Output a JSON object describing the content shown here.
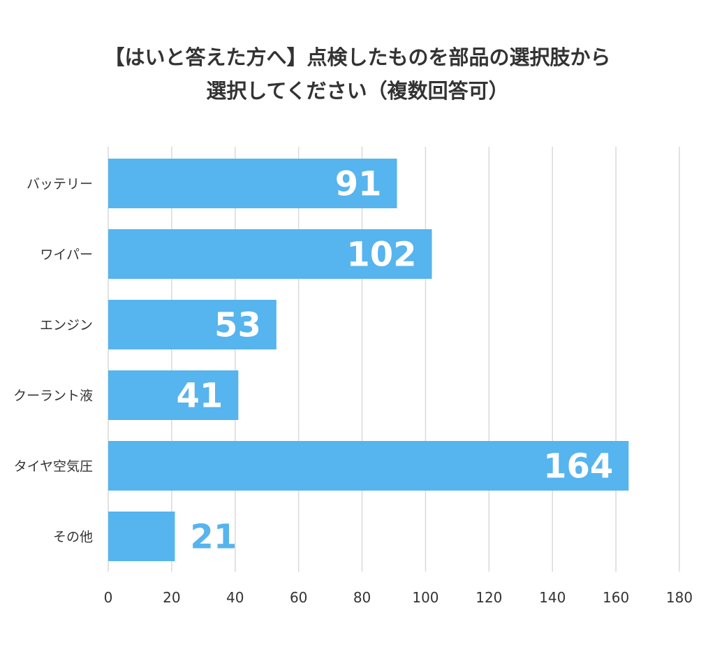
{
  "chart_data": {
    "type": "bar",
    "orientation": "horizontal",
    "title": "【はいと答えた方へ】点検したものを部品の選択肢から選択してください（複数回答可）",
    "title_lines": [
      "【はいと答えた方へ】点検したものを部品の選択肢から",
      "選択してください（複数回答可）"
    ],
    "categories": [
      "バッテリー",
      "ワイパー",
      "エンジン",
      "クーラント液",
      "タイヤ空気圧",
      "その他"
    ],
    "values": [
      91,
      102,
      53,
      41,
      164,
      21
    ],
    "xlim": [
      0,
      180
    ],
    "xticks": [
      0,
      20,
      40,
      60,
      80,
      100,
      120,
      140,
      160,
      180
    ],
    "xlabel": "",
    "ylabel": "",
    "grid": true,
    "legend": "none",
    "bar_color": "#56b4ee",
    "label_color_inside": "#ffffff",
    "label_color_outside": "#56b4ee",
    "text_color": "#333333",
    "grid_color": "#d9d9d9"
  }
}
